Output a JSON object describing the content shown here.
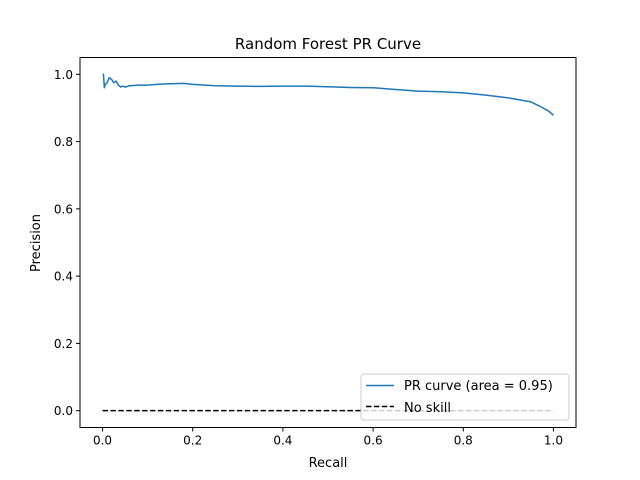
{
  "chart_data": {
    "type": "line",
    "title": "Random Forest PR Curve",
    "xlabel": "Recall",
    "ylabel": "Precision",
    "xlim": [
      -0.05,
      1.05
    ],
    "ylim": [
      -0.05,
      1.05
    ],
    "xticks": [
      0.0,
      0.2,
      0.4,
      0.6,
      0.8,
      1.0
    ],
    "xtick_labels": [
      "0.0",
      "0.2",
      "0.4",
      "0.6",
      "0.8",
      "1.0"
    ],
    "yticks": [
      0.0,
      0.2,
      0.4,
      0.6,
      0.8,
      1.0
    ],
    "ytick_labels": [
      "0.0",
      "0.2",
      "0.4",
      "0.6",
      "0.8",
      "1.0"
    ],
    "grid": false,
    "legend_position": "lower-right",
    "series": [
      {
        "name": "PR curve (area = 0.95)",
        "color": "#1f77b4",
        "style": "solid",
        "x": [
          0.0,
          0.002,
          0.004,
          0.006,
          0.01,
          0.015,
          0.02,
          0.025,
          0.03,
          0.035,
          0.04,
          0.045,
          0.05,
          0.06,
          0.08,
          0.1,
          0.12,
          0.15,
          0.18,
          0.2,
          0.25,
          0.3,
          0.35,
          0.4,
          0.45,
          0.5,
          0.55,
          0.6,
          0.65,
          0.7,
          0.75,
          0.8,
          0.85,
          0.9,
          0.93,
          0.95,
          0.97,
          0.99,
          1.0
        ],
        "y": [
          1.0,
          1.0,
          0.96,
          0.97,
          0.975,
          0.99,
          0.985,
          0.975,
          0.98,
          0.968,
          0.962,
          0.965,
          0.962,
          0.966,
          0.968,
          0.968,
          0.97,
          0.972,
          0.973,
          0.97,
          0.966,
          0.965,
          0.964,
          0.965,
          0.965,
          0.963,
          0.961,
          0.96,
          0.955,
          0.95,
          0.948,
          0.945,
          0.938,
          0.93,
          0.923,
          0.918,
          0.905,
          0.89,
          0.878
        ]
      },
      {
        "name": "No skill",
        "color": "#000000",
        "style": "dashed",
        "x": [
          0.0,
          1.0
        ],
        "y": [
          0.0,
          0.0
        ]
      }
    ]
  }
}
